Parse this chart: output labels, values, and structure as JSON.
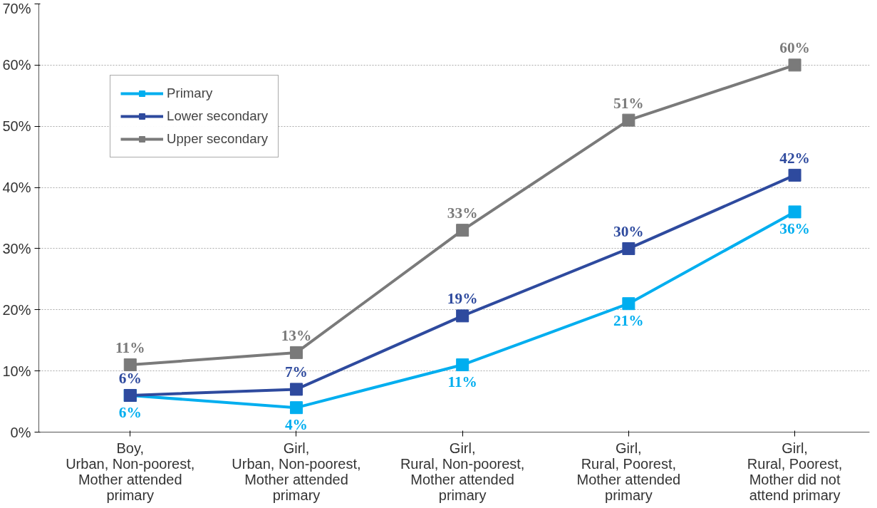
{
  "chart_data": {
    "type": "line",
    "categories": [
      "Boy, Urban, Non-poorest, Mother attended primary",
      "Girl, Urban, Non-poorest, Mother attended primary",
      "Girl, Rural, Non-poorest, Mother attended primary",
      "Girl, Rural, Poorest, Mother attended primary",
      "Girl, Rural, Poorest, Mother did not attend primary"
    ],
    "series": [
      {
        "name": "Primary",
        "color": "#00aeef",
        "values": [
          6,
          4,
          11,
          21,
          36
        ],
        "value_labels": [
          "6%",
          "4%",
          "11%",
          "21%",
          "36%"
        ]
      },
      {
        "name": "Lower secondary",
        "color": "#2e4a9e",
        "values": [
          6,
          7,
          19,
          30,
          42
        ],
        "value_labels": [
          "6%",
          "7%",
          "19%",
          "30%",
          "42%"
        ]
      },
      {
        "name": "Upper secondary",
        "color": "#7a7a7a",
        "values": [
          11,
          13,
          33,
          51,
          60
        ],
        "value_labels": [
          "11%",
          "13%",
          "33%",
          "51%",
          "60%"
        ]
      }
    ],
    "ylim": [
      0,
      70
    ],
    "yticks": [
      {
        "value": 0,
        "label": "0%"
      },
      {
        "value": 10,
        "label": "10%"
      },
      {
        "value": 20,
        "label": "20%"
      },
      {
        "value": 30,
        "label": "30%"
      },
      {
        "value": 40,
        "label": "40%"
      },
      {
        "value": 50,
        "label": "50%"
      },
      {
        "value": 60,
        "label": "60%"
      },
      {
        "value": 70,
        "label": "70%"
      }
    ],
    "grid": "y",
    "legend": "top left",
    "marker": "square",
    "line_style": "solid"
  }
}
